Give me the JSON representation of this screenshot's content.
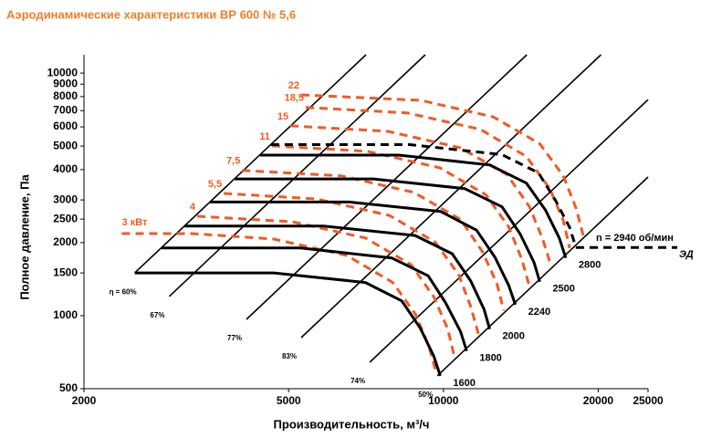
{
  "chart_data": {
    "type": "line",
    "title": "Аэродинамические характеристики ВР 600 № 5,6",
    "x_label": "Производительность, м³/ч",
    "y_label": "Полное давление, Па",
    "xscale": "log",
    "yscale": "log",
    "xlim": [
      2000,
      25000
    ],
    "ylim": [
      500,
      11900
    ],
    "xticks": [
      2000,
      5000,
      10000,
      20000,
      25000
    ],
    "yticks": [
      500,
      1000,
      1500,
      2000,
      2500,
      3000,
      4000,
      5000,
      6000,
      7000,
      8000,
      9000,
      10000
    ],
    "grid": false,
    "motor_label": "ЭД",
    "efficiency_lines": [
      {
        "name": "η = 60%",
        "color": "#000000",
        "x": [
          2510,
          7070
        ],
        "values": [
          1500,
          11900
        ]
      },
      {
        "name": "67%",
        "color": "#000000",
        "x": [
          2930,
          9220
        ],
        "values": [
          1200,
          11900
        ]
      },
      {
        "name": "77%",
        "color": "#000000",
        "x": [
          4140,
          14530
        ],
        "values": [
          966,
          11900
        ]
      },
      {
        "name": "83%",
        "color": "#000000",
        "x": [
          5290,
          20250
        ],
        "values": [
          812,
          11900
        ]
      },
      {
        "name": "74%",
        "color": "#000000",
        "x": [
          7190,
          25000
        ],
        "values": [
          643,
          7770
        ]
      },
      {
        "name": "50%",
        "color": "#000000",
        "x": [
          9730,
          25000
        ],
        "values": [
          565,
          3730
        ]
      }
    ],
    "series": [
      {
        "name": "3 кВт",
        "color": "#f15a24",
        "dashed": true,
        "x": [
          2370,
          3240,
          4680,
          6490,
          7970,
          8830,
          9380,
          9700
        ],
        "values": [
          2180,
          2180,
          2070,
          1770,
          1370,
          1010,
          745,
          575
        ]
      },
      {
        "name": "4",
        "color": "#f15a24",
        "dashed": true,
        "x": [
          3320,
          5080,
          7050,
          8660,
          9590,
          10200,
          10500
        ],
        "values": [
          2570,
          2440,
          2090,
          1620,
          1190,
          880,
          680
        ]
      },
      {
        "name": "5,5",
        "color": "#f15a24",
        "dashed": true,
        "x": [
          3740,
          5660,
          7850,
          9640,
          10700,
          11300,
          11700
        ],
        "values": [
          3190,
          3030,
          2590,
          2010,
          1480,
          1090,
          840
        ]
      },
      {
        "name": "7,5",
        "color": "#f15a24",
        "dashed": true,
        "x": [
          4060,
          6320,
          8760,
          10800,
          11900,
          12700,
          13100
        ],
        "values": [
          3970,
          3770,
          3220,
          2490,
          1840,
          1360,
          1050
        ]
      },
      {
        "name": "11",
        "color": "#f15a24",
        "dashed": true,
        "x": [
          4640,
          7100,
          9840,
          12100,
          13400,
          14200,
          14700
        ],
        "values": [
          5010,
          4760,
          4070,
          3150,
          2320,
          1710,
          1320
        ]
      },
      {
        "name": "15",
        "color": "#f15a24",
        "dashed": true,
        "x": [
          5040,
          7810,
          10800,
          13300,
          14700,
          15600,
          16200
        ],
        "values": [
          6060,
          5750,
          4920,
          3810,
          2810,
          2070,
          1600
        ]
      },
      {
        "name": "18,5",
        "color": "#f15a24",
        "dashed": true,
        "x": [
          5400,
          8510,
          11800,
          14500,
          16100,
          17100,
          17600
        ],
        "values": [
          7220,
          6850,
          5860,
          4530,
          3340,
          2470,
          1900
        ]
      },
      {
        "name": "22",
        "color": "#f15a24",
        "dashed": true,
        "x": [
          5290,
          9040,
          12500,
          15400,
          17100,
          18100,
          18700
        ],
        "values": [
          8130,
          7720,
          6600,
          5110,
          3770,
          2780,
          2140
        ]
      },
      {
        "name": "1600",
        "color": "#000000",
        "dashed": false,
        "x": [
          2510,
          4680,
          7050,
          8300,
          9010,
          9580,
          9860
        ],
        "values": [
          1500,
          1500,
          1370,
          1150,
          890,
          680,
          565
        ]
      },
      {
        "name": "1800",
        "color": "#000000",
        "dashed": false,
        "x": [
          2830,
          5270,
          7930,
          9340,
          10100,
          10800,
          11100
        ],
        "values": [
          1900,
          1900,
          1730,
          1460,
          1130,
          860,
          715
        ]
      },
      {
        "name": "2000",
        "color": "#000000",
        "dashed": false,
        "x": [
          3140,
          5850,
          8810,
          10400,
          11300,
          12000,
          12300
        ],
        "values": [
          2340,
          2340,
          2140,
          1800,
          1390,
          1060,
          880
        ]
      },
      {
        "name": "2240",
        "color": "#000000",
        "dashed": false,
        "x": [
          3520,
          6550,
          9870,
          11600,
          12600,
          13400,
          13800
        ],
        "values": [
          2940,
          2940,
          2690,
          2250,
          1740,
          1330,
          1110
        ]
      },
      {
        "name": "2500",
        "color": "#000000",
        "dashed": false,
        "x": [
          3930,
          7310,
          11000,
          13000,
          14100,
          15000,
          15400
        ],
        "values": [
          3660,
          3660,
          3340,
          2810,
          2170,
          1660,
          1380
        ]
      },
      {
        "name": "2800",
        "color": "#000000",
        "dashed": false,
        "x": [
          4400,
          8190,
          12300,
          14500,
          15800,
          16800,
          17300
        ],
        "values": [
          4590,
          4590,
          4180,
          3520,
          2720,
          2090,
          1730
        ]
      },
      {
        "name": "n = 2940 об/мин",
        "color": "#000000",
        "dashed": true,
        "x": [
          4620,
          8600,
          13000,
          15300,
          16500,
          17600,
          18100
        ],
        "values": [
          5070,
          5070,
          4610,
          3880,
          3000,
          2310,
          1910
        ]
      }
    ]
  }
}
